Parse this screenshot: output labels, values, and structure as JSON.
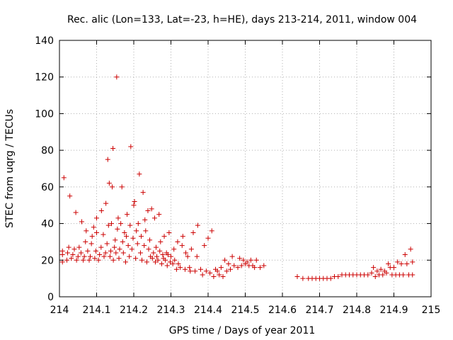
{
  "chart_data": {
    "type": "scatter",
    "title": "Rec. alic (Lon=133, Lat=-23, h=HE), days 213-214, 2011, window 004",
    "xlabel": "GPS time / Days of year 2011",
    "ylabel": "STEC from uqrg / TECUs",
    "xlim": [
      214,
      215
    ],
    "ylim": [
      0,
      140
    ],
    "xticks": [
      "214",
      "214.1",
      "214.2",
      "214.3",
      "214.4",
      "214.5",
      "214.6",
      "214.7",
      "214.8",
      "214.9",
      "215"
    ],
    "yticks": [
      "0",
      "20",
      "40",
      "60",
      "80",
      "100",
      "120",
      "140"
    ],
    "grid": true,
    "marker": "+",
    "color": "#cc0000",
    "points": [
      [
        214.008,
        19
      ],
      [
        214.008,
        23
      ],
      [
        214.008,
        25
      ],
      [
        214.012,
        65
      ],
      [
        214.02,
        20
      ],
      [
        214.022,
        24
      ],
      [
        214.025,
        27
      ],
      [
        214.028,
        55
      ],
      [
        214.032,
        21
      ],
      [
        214.036,
        23
      ],
      [
        214.04,
        26
      ],
      [
        214.044,
        46
      ],
      [
        214.046,
        20
      ],
      [
        214.05,
        22
      ],
      [
        214.053,
        27
      ],
      [
        214.058,
        24
      ],
      [
        214.06,
        41
      ],
      [
        214.064,
        20
      ],
      [
        214.067,
        22
      ],
      [
        214.07,
        30
      ],
      [
        214.072,
        36
      ],
      [
        214.076,
        25
      ],
      [
        214.08,
        20
      ],
      [
        214.083,
        22
      ],
      [
        214.086,
        29
      ],
      [
        214.088,
        33
      ],
      [
        214.092,
        38
      ],
      [
        214.095,
        21
      ],
      [
        214.098,
        25
      ],
      [
        214.1,
        35
      ],
      [
        214.1,
        43
      ],
      [
        214.105,
        20
      ],
      [
        214.108,
        23
      ],
      [
        214.112,
        27
      ],
      [
        214.113,
        47
      ],
      [
        214.118,
        34
      ],
      [
        214.12,
        22
      ],
      [
        214.124,
        24
      ],
      [
        214.125,
        51
      ],
      [
        214.128,
        29
      ],
      [
        214.13,
        75
      ],
      [
        214.132,
        39
      ],
      [
        214.134,
        62
      ],
      [
        214.136,
        22
      ],
      [
        214.138,
        25
      ],
      [
        214.14,
        40
      ],
      [
        214.142,
        60
      ],
      [
        214.144,
        81
      ],
      [
        214.145,
        20
      ],
      [
        214.148,
        27
      ],
      [
        214.15,
        31
      ],
      [
        214.152,
        24
      ],
      [
        214.154,
        120
      ],
      [
        214.156,
        37
      ],
      [
        214.158,
        43
      ],
      [
        214.16,
        21
      ],
      [
        214.162,
        26
      ],
      [
        214.165,
        40
      ],
      [
        214.168,
        60
      ],
      [
        214.17,
        30
      ],
      [
        214.172,
        24
      ],
      [
        214.175,
        35
      ],
      [
        214.178,
        19
      ],
      [
        214.18,
        33
      ],
      [
        214.182,
        45
      ],
      [
        214.185,
        28
      ],
      [
        214.188,
        22
      ],
      [
        214.19,
        39
      ],
      [
        214.192,
        82
      ],
      [
        214.195,
        26
      ],
      [
        214.198,
        32
      ],
      [
        214.2,
        50
      ],
      [
        214.202,
        52
      ],
      [
        214.205,
        21
      ],
      [
        214.207,
        36
      ],
      [
        214.21,
        29
      ],
      [
        214.212,
        40
      ],
      [
        214.215,
        67
      ],
      [
        214.218,
        24
      ],
      [
        214.22,
        33
      ],
      [
        214.222,
        20
      ],
      [
        214.225,
        57
      ],
      [
        214.228,
        28
      ],
      [
        214.23,
        42
      ],
      [
        214.232,
        36
      ],
      [
        214.235,
        19
      ],
      [
        214.238,
        47
      ],
      [
        214.24,
        26
      ],
      [
        214.243,
        31
      ],
      [
        214.245,
        22
      ],
      [
        214.248,
        48
      ],
      [
        214.25,
        21
      ],
      [
        214.253,
        24
      ],
      [
        214.256,
        43
      ],
      [
        214.258,
        19
      ],
      [
        214.26,
        27
      ],
      [
        214.262,
        22
      ],
      [
        214.265,
        20
      ],
      [
        214.268,
        45
      ],
      [
        214.27,
        25
      ],
      [
        214.272,
        30
      ],
      [
        214.275,
        18
      ],
      [
        214.278,
        23
      ],
      [
        214.28,
        21
      ],
      [
        214.282,
        33
      ],
      [
        214.285,
        20
      ],
      [
        214.288,
        24
      ],
      [
        214.29,
        17
      ],
      [
        214.292,
        23
      ],
      [
        214.295,
        35
      ],
      [
        214.298,
        19
      ],
      [
        214.3,
        22
      ],
      [
        214.305,
        18
      ],
      [
        214.308,
        26
      ],
      [
        214.31,
        20
      ],
      [
        214.315,
        15
      ],
      [
        214.318,
        30
      ],
      [
        214.32,
        18
      ],
      [
        214.325,
        16
      ],
      [
        214.33,
        28
      ],
      [
        214.332,
        33
      ],
      [
        214.338,
        15
      ],
      [
        214.34,
        24
      ],
      [
        214.345,
        22
      ],
      [
        214.35,
        16
      ],
      [
        214.352,
        14
      ],
      [
        214.355,
        26
      ],
      [
        214.36,
        35
      ],
      [
        214.365,
        14
      ],
      [
        214.37,
        22
      ],
      [
        214.372,
        39
      ],
      [
        214.38,
        15
      ],
      [
        214.385,
        12
      ],
      [
        214.39,
        28
      ],
      [
        214.395,
        14
      ],
      [
        214.4,
        32
      ],
      [
        214.405,
        13
      ],
      [
        214.41,
        36
      ],
      [
        214.415,
        11
      ],
      [
        214.42,
        15
      ],
      [
        214.425,
        14
      ],
      [
        214.43,
        12
      ],
      [
        214.435,
        16
      ],
      [
        214.44,
        11
      ],
      [
        214.445,
        20
      ],
      [
        214.45,
        14
      ],
      [
        214.455,
        18
      ],
      [
        214.46,
        15
      ],
      [
        214.465,
        22
      ],
      [
        214.47,
        17
      ],
      [
        214.48,
        16
      ],
      [
        214.485,
        21
      ],
      [
        214.49,
        17
      ],
      [
        214.495,
        20
      ],
      [
        214.5,
        18
      ],
      [
        214.505,
        19
      ],
      [
        214.51,
        17
      ],
      [
        214.515,
        20
      ],
      [
        214.52,
        17
      ],
      [
        214.525,
        16
      ],
      [
        214.53,
        20
      ],
      [
        214.54,
        16
      ],
      [
        214.55,
        17
      ],
      [
        214.64,
        11
      ],
      [
        214.655,
        10
      ],
      [
        214.67,
        10
      ],
      [
        214.68,
        10
      ],
      [
        214.69,
        10
      ],
      [
        214.7,
        10
      ],
      [
        214.71,
        10
      ],
      [
        214.72,
        10
      ],
      [
        214.73,
        10
      ],
      [
        214.74,
        11
      ],
      [
        214.75,
        11
      ],
      [
        214.76,
        12
      ],
      [
        214.77,
        12
      ],
      [
        214.78,
        12
      ],
      [
        214.79,
        12
      ],
      [
        214.8,
        12
      ],
      [
        214.81,
        12
      ],
      [
        214.82,
        12
      ],
      [
        214.83,
        12
      ],
      [
        214.84,
        13
      ],
      [
        214.845,
        16
      ],
      [
        214.85,
        11
      ],
      [
        214.855,
        14
      ],
      [
        214.86,
        12
      ],
      [
        214.865,
        15
      ],
      [
        214.87,
        12
      ],
      [
        214.875,
        14
      ],
      [
        214.88,
        13
      ],
      [
        214.885,
        18
      ],
      [
        214.89,
        16
      ],
      [
        214.895,
        12
      ],
      [
        214.9,
        16
      ],
      [
        214.905,
        12
      ],
      [
        214.91,
        19
      ],
      [
        214.915,
        12
      ],
      [
        214.92,
        18
      ],
      [
        214.925,
        12
      ],
      [
        214.93,
        23
      ],
      [
        214.935,
        18
      ],
      [
        214.94,
        12
      ],
      [
        214.945,
        26
      ],
      [
        214.95,
        12
      ],
      [
        214.95,
        19
      ]
    ]
  }
}
